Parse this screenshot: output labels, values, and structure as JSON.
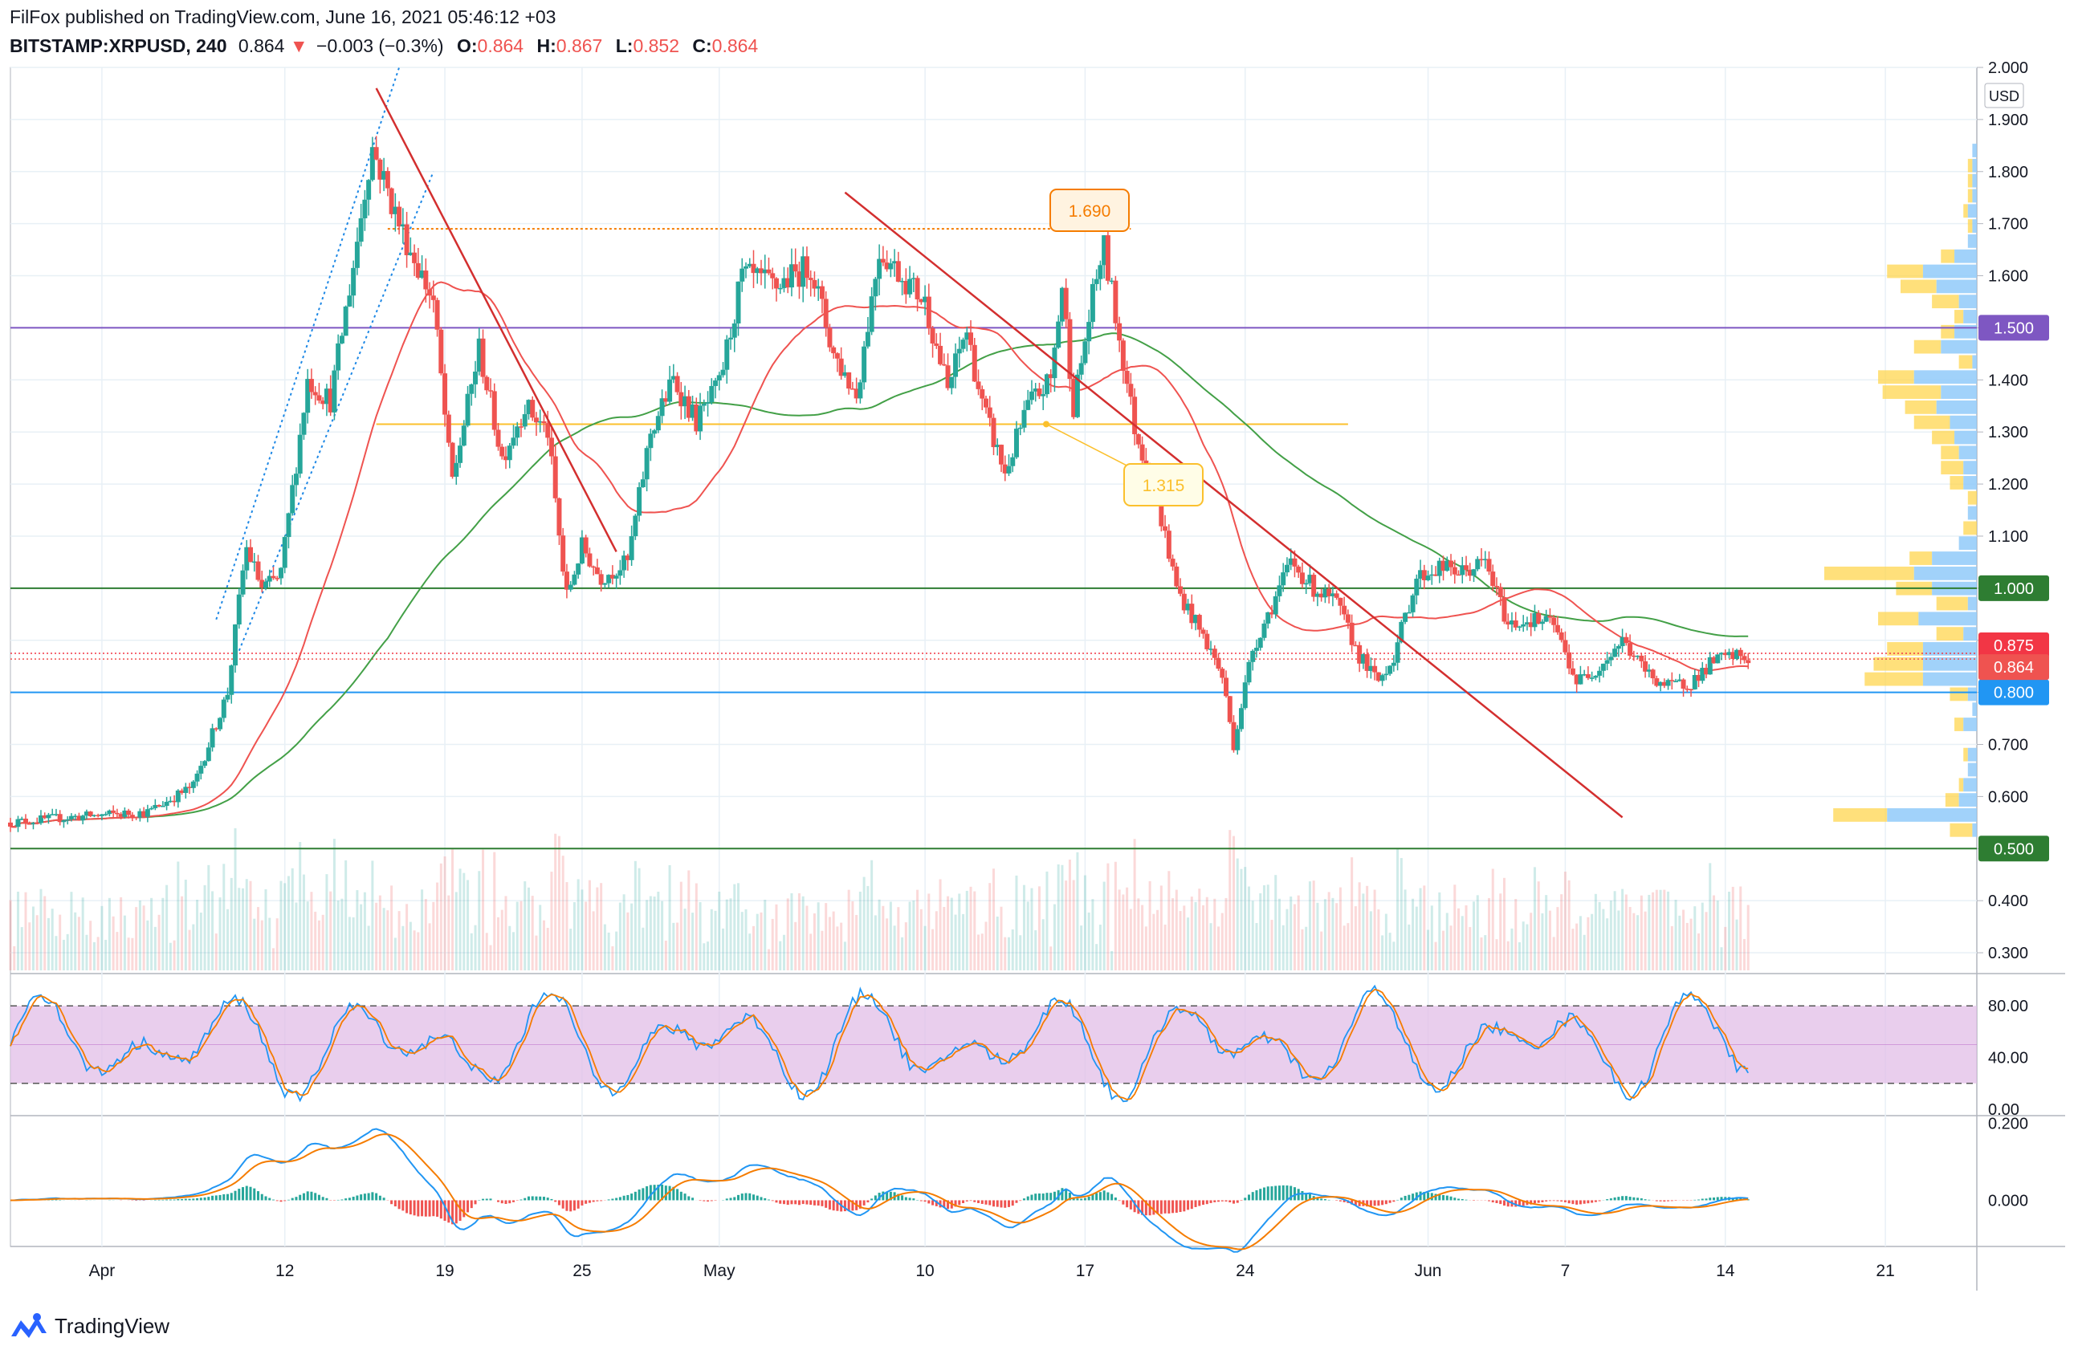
{
  "header": {
    "publisher_line": "FilFox published on TradingView.com, June 16, 2021 05:46:12 +03",
    "symbol": "BITSTAMP:XRPUSD, 240",
    "last": "0.864",
    "arrow": "▼",
    "change": "−0.003 (−0.3%)",
    "o_label": "O:",
    "o_value": "0.864",
    "h_label": "H:",
    "h_value": "0.867",
    "l_label": "L:",
    "l_value": "0.852",
    "c_label": "C:",
    "c_value": "0.864"
  },
  "footer": {
    "brand": "TradingView"
  },
  "colors": {
    "up": "#26a69a",
    "down": "#ef5350",
    "grid": "#e8f0f6",
    "ma_red": "#ef5350",
    "ma_green": "#43a047",
    "purple_level": "#7e57c2",
    "green_level": "#2e7d32",
    "blue_level": "#2196f3",
    "stoch_band": "#e1bee7",
    "macd_blue": "#2196f3",
    "macd_orange": "#f57c00",
    "vp_up": "#90caf9",
    "vp_down": "#ffd54f"
  },
  "chart_data": [
    {
      "type": "candlestick",
      "pane": "price",
      "currency": "USD",
      "ylim": [
        0.26,
        2.0
      ],
      "y_ticks": [
        "2.000",
        "1.900",
        "1.800",
        "1.700",
        "1.600",
        "1.500",
        "1.400",
        "1.300",
        "1.200",
        "1.100",
        "1.000",
        "0.900",
        "0.800",
        "0.700",
        "0.600",
        "0.500",
        "0.400",
        "0.300"
      ],
      "x_ticks": [
        "Apr",
        "12",
        "19",
        "25",
        "May",
        "10",
        "17",
        "24",
        "Jun",
        "7",
        "14",
        "21"
      ],
      "x_tick_days": [
        4,
        12,
        19,
        25,
        31,
        40,
        47,
        54,
        62,
        68,
        75,
        82
      ],
      "key_points": [
        {
          "day": 0.0,
          "price": 0.55
        },
        {
          "day": 2.5,
          "price": 0.56
        },
        {
          "day": 6.0,
          "price": 0.57
        },
        {
          "day": 8.0,
          "price": 0.62
        },
        {
          "day": 9.5,
          "price": 0.8
        },
        {
          "day": 10.3,
          "price": 1.08
        },
        {
          "day": 11.0,
          "price": 1.0
        },
        {
          "day": 11.8,
          "price": 1.02
        },
        {
          "day": 13.0,
          "price": 1.4
        },
        {
          "day": 14.0,
          "price": 1.36
        },
        {
          "day": 15.0,
          "price": 1.62
        },
        {
          "day": 15.8,
          "price": 1.85
        },
        {
          "day": 17.0,
          "price": 1.7
        },
        {
          "day": 18.5,
          "price": 1.55
        },
        {
          "day": 19.3,
          "price": 1.2
        },
        {
          "day": 20.5,
          "price": 1.46
        },
        {
          "day": 21.5,
          "price": 1.25
        },
        {
          "day": 22.5,
          "price": 1.35
        },
        {
          "day": 23.5,
          "price": 1.3
        },
        {
          "day": 24.3,
          "price": 0.98
        },
        {
          "day": 25.0,
          "price": 1.08
        },
        {
          "day": 25.8,
          "price": 1.02
        },
        {
          "day": 27.0,
          "price": 1.05
        },
        {
          "day": 28.0,
          "price": 1.3
        },
        {
          "day": 29.0,
          "price": 1.4
        },
        {
          "day": 30.0,
          "price": 1.32
        },
        {
          "day": 31.0,
          "price": 1.39
        },
        {
          "day": 32.0,
          "price": 1.6
        },
        {
          "day": 33.5,
          "price": 1.58
        },
        {
          "day": 35.0,
          "price": 1.62
        },
        {
          "day": 36.0,
          "price": 1.45
        },
        {
          "day": 37.0,
          "price": 1.37
        },
        {
          "day": 38.0,
          "price": 1.65
        },
        {
          "day": 39.0,
          "price": 1.6
        },
        {
          "day": 40.0,
          "price": 1.55
        },
        {
          "day": 41.0,
          "price": 1.38
        },
        {
          "day": 41.8,
          "price": 1.5
        },
        {
          "day": 42.5,
          "price": 1.35
        },
        {
          "day": 43.5,
          "price": 1.22
        },
        {
          "day": 44.5,
          "price": 1.35
        },
        {
          "day": 45.5,
          "price": 1.4
        },
        {
          "day": 46.0,
          "price": 1.58
        },
        {
          "day": 46.5,
          "price": 1.35
        },
        {
          "day": 47.3,
          "price": 1.55
        },
        {
          "day": 47.8,
          "price": 1.66
        },
        {
          "day": 48.5,
          "price": 1.48
        },
        {
          "day": 49.2,
          "price": 1.3
        },
        {
          "day": 50.0,
          "price": 1.2
        },
        {
          "day": 51.0,
          "price": 1.0
        },
        {
          "day": 52.5,
          "price": 0.88
        },
        {
          "day": 53.0,
          "price": 0.83
        },
        {
          "day": 53.5,
          "price": 0.7
        },
        {
          "day": 54.3,
          "price": 0.88
        },
        {
          "day": 55.0,
          "price": 0.95
        },
        {
          "day": 56.0,
          "price": 1.05
        },
        {
          "day": 57.0,
          "price": 1.0
        },
        {
          "day": 58.0,
          "price": 0.97
        },
        {
          "day": 59.0,
          "price": 0.87
        },
        {
          "day": 59.8,
          "price": 0.82
        },
        {
          "day": 60.5,
          "price": 0.87
        },
        {
          "day": 61.5,
          "price": 1.02
        },
        {
          "day": 62.5,
          "price": 1.04
        },
        {
          "day": 63.5,
          "price": 1.03
        },
        {
          "day": 64.5,
          "price": 1.05
        },
        {
          "day": 65.5,
          "price": 0.93
        },
        {
          "day": 66.5,
          "price": 0.94
        },
        {
          "day": 67.5,
          "price": 0.93
        },
        {
          "day": 68.5,
          "price": 0.82
        },
        {
          "day": 69.5,
          "price": 0.85
        },
        {
          "day": 70.5,
          "price": 0.9
        },
        {
          "day": 71.5,
          "price": 0.84
        },
        {
          "day": 72.5,
          "price": 0.81
        },
        {
          "day": 73.5,
          "price": 0.82
        },
        {
          "day": 74.5,
          "price": 0.86
        },
        {
          "day": 75.5,
          "price": 0.87
        },
        {
          "day": 76.0,
          "price": 0.864
        }
      ],
      "moving_averages": [
        {
          "name": "fast",
          "color": "#ef5350"
        },
        {
          "name": "slow",
          "color": "#43a047"
        }
      ],
      "horizontal_levels": [
        {
          "price": 1.5,
          "label": "1.500",
          "color": "#7e57c2"
        },
        {
          "price": 1.0,
          "label": "1.000",
          "color": "#2e7d32"
        },
        {
          "price": 0.8,
          "label": "0.800",
          "color": "#2196f3"
        },
        {
          "price": 0.5,
          "label": "0.500",
          "color": "#2e7d32"
        }
      ],
      "price_tags": [
        {
          "price": 0.875,
          "label": "0.875",
          "color": "#f23645"
        },
        {
          "price": 0.864,
          "label": "0.864",
          "color": "#ef5350"
        }
      ],
      "annotations": [
        {
          "label": "1.690",
          "price": 1.69,
          "day": 47.8,
          "color": "#f57c00"
        },
        {
          "label": "1.315",
          "price": 1.315,
          "day": 45.3,
          "color": "#fbc02d"
        }
      ],
      "trendlines": [
        {
          "from": {
            "day": 16.0,
            "price": 1.96
          },
          "to": {
            "day": 26.5,
            "price": 1.07
          },
          "color": "#d32f2f"
        },
        {
          "from": {
            "day": 36.5,
            "price": 1.76
          },
          "to": {
            "day": 70.5,
            "price": 0.56
          },
          "color": "#d32f2f"
        }
      ],
      "channel_lines": [
        {
          "from": {
            "day": 9.0,
            "price": 0.94
          },
          "to": {
            "day": 17.0,
            "price": 2.0
          },
          "color": "#1e88e5"
        },
        {
          "from": {
            "day": 10.0,
            "price": 0.88
          },
          "to": {
            "day": 18.5,
            "price": 1.8
          },
          "color": "#1e88e5"
        }
      ]
    },
    {
      "type": "area",
      "pane": "stochastic",
      "ylim": [
        0,
        100
      ],
      "y_ticks": [
        "80.00",
        "40.00",
        "0.00"
      ],
      "band": [
        20,
        80
      ]
    },
    {
      "type": "line",
      "pane": "macd",
      "ylim": [
        -0.12,
        0.22
      ],
      "y_ticks": [
        "0.200",
        "0.000"
      ],
      "series": [
        {
          "color": "#2196f3"
        },
        {
          "color": "#f57c00"
        }
      ]
    }
  ]
}
